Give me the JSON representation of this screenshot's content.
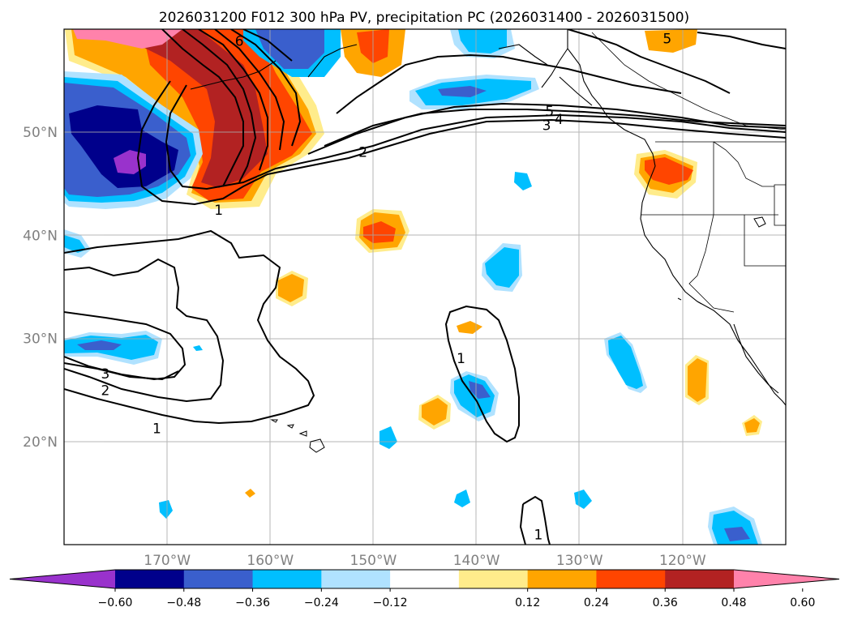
{
  "title": "2026031200 F012 300 hPa PV, precipitation PC (2026031400 - 2026031500)",
  "map": {
    "lon_range": [
      -180,
      -110
    ],
    "lat_range": [
      10,
      60
    ],
    "lon_ticks": [
      {
        "value": -170,
        "label": "170°W"
      },
      {
        "value": -160,
        "label": "160°W"
      },
      {
        "value": -150,
        "label": "150°W"
      },
      {
        "value": -140,
        "label": "140°W"
      },
      {
        "value": -130,
        "label": "130°W"
      },
      {
        "value": -120,
        "label": "120°W"
      }
    ],
    "lat_ticks": [
      {
        "value": 20,
        "label": "20°N"
      },
      {
        "value": 30,
        "label": "30°N"
      },
      {
        "value": 40,
        "label": "40°N"
      },
      {
        "value": 50,
        "label": "50°N"
      }
    ],
    "contour_labels": [
      {
        "text": "6",
        "lon": -163.0,
        "lat": 58.8
      },
      {
        "text": "5",
        "lon": -121.5,
        "lat": 59.0
      },
      {
        "text": "5",
        "lon": -132.9,
        "lat": 52.0
      },
      {
        "text": "4",
        "lon": -132.0,
        "lat": 51.2
      },
      {
        "text": "3",
        "lon": -133.2,
        "lat": 50.6
      },
      {
        "text": "2",
        "lon": -151.0,
        "lat": 48.0
      },
      {
        "text": "1",
        "lon": -165.0,
        "lat": 42.4
      },
      {
        "text": "1",
        "lon": -141.5,
        "lat": 28.0
      },
      {
        "text": "3",
        "lon": -176.0,
        "lat": 26.5
      },
      {
        "text": "2",
        "lon": -176.0,
        "lat": 24.9
      },
      {
        "text": "1",
        "lon": -171.0,
        "lat": 21.2
      },
      {
        "text": "1",
        "lon": -134.0,
        "lat": 10.9
      }
    ]
  },
  "colorbar": {
    "tick_labels": [
      "−0.60",
      "−0.48",
      "−0.36",
      "−0.24",
      "−0.12",
      "0.12",
      "0.24",
      "0.36",
      "0.48",
      "0.60"
    ],
    "colors": [
      "#9932cc",
      "#00008b",
      "#3a5fcd",
      "#00bfff",
      "#b0e2ff",
      "#ffffff",
      "#ffec8b",
      "#ffa500",
      "#ff4500",
      "#b22222",
      "#ff82ab"
    ]
  }
}
